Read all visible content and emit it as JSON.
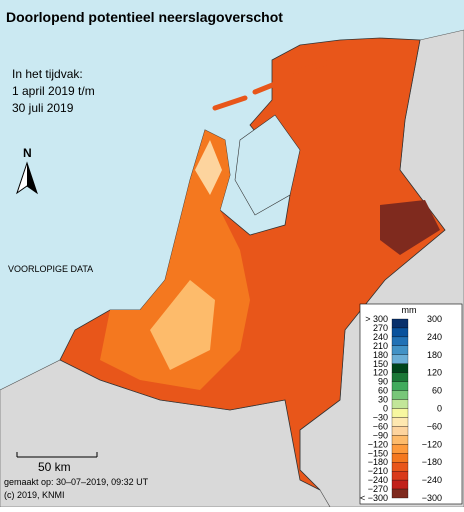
{
  "header": {
    "title": "Doorlopend potentieel neerslagoverschot",
    "period": [
      "In het tijdvak:",
      "1 april 2019 t/m",
      "30 juli 2019"
    ]
  },
  "map": {
    "north": "N",
    "note": "VOORLOPIGE DATA",
    "scale": "50 km"
  },
  "footer": [
    "gemaakt op: 30–07–2019, 09:32 UT",
    "(c) 2019, KNMI"
  ],
  "legend": {
    "unit": "mm",
    "left_labels": [
      "> 300",
      "270",
      "240",
      "210",
      "180",
      "150",
      "120",
      "90",
      "60",
      "30",
      "0",
      "−30",
      "−60",
      "−90",
      "−120",
      "−150",
      "−180",
      "−210",
      "−240",
      "−270",
      "< −300"
    ],
    "right_labels": [
      "300",
      "240",
      "180",
      "120",
      "60",
      "0",
      "−60",
      "−120",
      "−180",
      "−240",
      "−300"
    ],
    "colors": [
      "#08306b",
      "#08519c",
      "#2171b5",
      "#4292c6",
      "#6baed6",
      "#00441b",
      "#1b7837",
      "#41ab5d",
      "#78c679",
      "#c2e699",
      "#f7f7a0",
      "#fee8b0",
      "#fdd49e",
      "#fdbb6b",
      "#fd9a3c",
      "#f4781f",
      "#e8561a",
      "#d93a1a",
      "#c1201a",
      "#7f2a1e"
    ]
  }
}
